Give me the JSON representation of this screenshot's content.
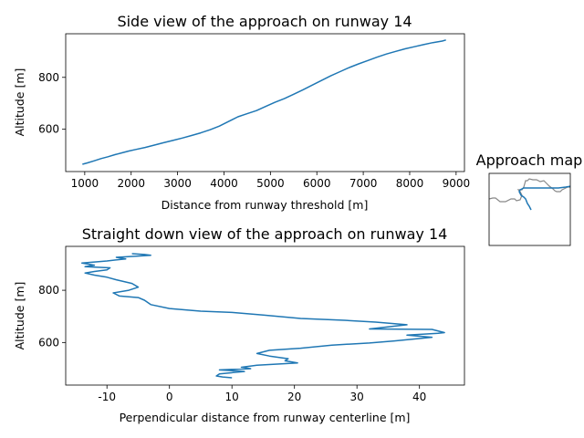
{
  "chart_data": [
    {
      "type": "line",
      "title": "Side view of the approach on runway 14",
      "xlabel": "Distance from runway threshold [m]",
      "ylabel": "Altitude [m]",
      "xlim": [
        590,
        9180
      ],
      "ylim": [
        437,
        968
      ],
      "xticks": [
        1000,
        2000,
        3000,
        4000,
        5000,
        6000,
        7000,
        8000,
        9000
      ],
      "yticks": [
        600,
        800
      ],
      "series": [
        {
          "color": "#1f77b4",
          "x": [
            950,
            1050,
            1200,
            1350,
            1500,
            1650,
            1800,
            1950,
            2100,
            2300,
            2500,
            2700,
            2900,
            3100,
            3300,
            3500,
            3700,
            3900,
            4100,
            4300,
            4500,
            4700,
            4900,
            5100,
            5300,
            5500,
            5700,
            5900,
            6100,
            6300,
            6500,
            6700,
            6900,
            7100,
            7300,
            7500,
            7700,
            7900,
            8100,
            8300,
            8500,
            8700,
            8780
          ],
          "y": [
            465,
            470,
            478,
            487,
            494,
            502,
            509,
            516,
            522,
            530,
            539,
            548,
            557,
            566,
            576,
            586,
            598,
            612,
            630,
            648,
            660,
            672,
            688,
            704,
            718,
            735,
            752,
            770,
            788,
            806,
            822,
            838,
            852,
            865,
            878,
            890,
            900,
            910,
            918,
            926,
            934,
            940,
            944
          ]
        }
      ]
    },
    {
      "type": "line",
      "title": "Approach map",
      "series": [
        {
          "name": "",
          "color": "#888888",
          "x": [
            0,
            4,
            7,
            12,
            18,
            24,
            28,
            30,
            34,
            36,
            34,
            32,
            36,
            38,
            40,
            42,
            44,
            48,
            52,
            56,
            60,
            64,
            66,
            70,
            72,
            74,
            78,
            80,
            82,
            84,
            86,
            88,
            90
          ],
          "y": [
            28,
            27,
            27,
            31,
            31,
            28,
            28,
            30,
            29,
            24,
            20,
            18,
            18,
            15,
            8,
            8,
            6,
            7,
            7,
            9,
            8,
            12,
            14,
            17,
            19,
            20,
            20,
            18,
            17,
            16,
            15,
            15,
            15
          ]
        },
        {
          "name": "",
          "color": "#1f77b4",
          "x": [
            90,
            84,
            76,
            68,
            62,
            56,
            50,
            44,
            38,
            36,
            34,
            33,
            35,
            38,
            40,
            42,
            44,
            46
          ],
          "y": [
            14,
            15,
            16,
            16,
            16,
            16,
            16,
            16,
            16,
            17,
            18,
            20,
            24,
            26,
            28,
            33,
            36,
            40
          ]
        }
      ]
    },
    {
      "type": "line",
      "title": "Straight down view of the approach on runway 14",
      "xlabel": "Perpendicular distance from runway centerline [m]",
      "ylabel": "Altitude [m]",
      "xlim": [
        -16.6,
        47.2
      ],
      "ylim": [
        437,
        968
      ],
      "xticks": [
        -10,
        0,
        10,
        20,
        30,
        40
      ],
      "yticks": [
        600,
        800
      ],
      "series": [
        {
          "color": "#1f77b4",
          "x": [
            10,
            8.5,
            7.5,
            8,
            12,
            8,
            13,
            11.5,
            14,
            20.5,
            18.5,
            19,
            16,
            14,
            16,
            21,
            26,
            32,
            36,
            42,
            38,
            43,
            44,
            42,
            32,
            38,
            33,
            28,
            21,
            15,
            10,
            5,
            0,
            -3,
            -4,
            -5,
            -8,
            -9,
            -6.5,
            -5,
            -6,
            -8.5,
            -10,
            -12,
            -13.5,
            -12,
            -10,
            -9.5,
            -13.5,
            -12,
            -14,
            -10,
            -7,
            -8.5,
            -5,
            -3,
            -4,
            -6
          ],
          "y": [
            465,
            468,
            472,
            480,
            489,
            495,
            500,
            505,
            513,
            522,
            530,
            538,
            548,
            558,
            570,
            578,
            590,
            598,
            606,
            620,
            628,
            635,
            638,
            650,
            652,
            668,
            678,
            685,
            692,
            705,
            715,
            720,
            730,
            745,
            762,
            772,
            778,
            790,
            800,
            812,
            826,
            840,
            850,
            858,
            866,
            872,
            878,
            886,
            890,
            896,
            904,
            912,
            920,
            926,
            931,
            934,
            937,
            940
          ]
        }
      ]
    }
  ]
}
